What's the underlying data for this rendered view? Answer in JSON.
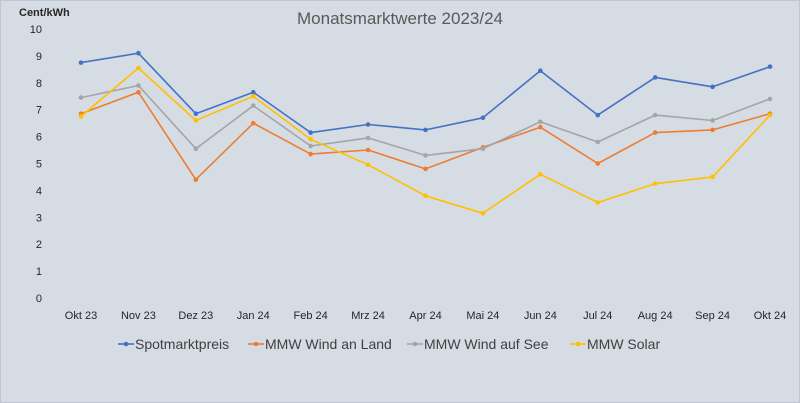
{
  "chart_data": {
    "type": "line",
    "title": "Monatsmarktwerte 2023/24",
    "ylabel": "Cent/kWh",
    "xlabel": "",
    "categories": [
      "Okt 23",
      "Nov 23",
      "Dez 23",
      "Jan 24",
      "Feb 24",
      "Mrz 24",
      "Apr 24",
      "Mai 24",
      "Jun 24",
      "Jul 24",
      "Aug 24",
      "Sep 24",
      "Okt 24"
    ],
    "ylim": [
      0,
      10
    ],
    "yticks": [
      0,
      1,
      2,
      3,
      4,
      5,
      6,
      7,
      8,
      9,
      10
    ],
    "grid": false,
    "legend_position": "bottom",
    "series": [
      {
        "name": "Spotmarktpreis",
        "color": "#4472c4",
        "values": [
          8.75,
          9.1,
          6.85,
          7.65,
          6.15,
          6.45,
          6.25,
          6.7,
          8.45,
          6.8,
          8.2,
          7.85,
          8.6
        ]
      },
      {
        "name": "MMW Wind an Land",
        "color": "#ed7d31",
        "values": [
          6.85,
          7.65,
          4.4,
          6.5,
          5.35,
          5.5,
          4.8,
          5.6,
          6.35,
          5.0,
          6.15,
          6.25,
          6.85
        ]
      },
      {
        "name": "MMW Wind auf See",
        "color": "#a5a5a5",
        "values": [
          7.45,
          7.9,
          5.55,
          7.15,
          5.65,
          5.95,
          5.3,
          5.55,
          6.55,
          5.8,
          6.8,
          6.6,
          7.4
        ]
      },
      {
        "name": "MMW Solar",
        "color": "#ffc000",
        "values": [
          6.75,
          8.55,
          6.6,
          7.5,
          5.9,
          4.95,
          3.8,
          3.15,
          4.6,
          3.55,
          4.25,
          4.5,
          6.8
        ]
      }
    ]
  }
}
